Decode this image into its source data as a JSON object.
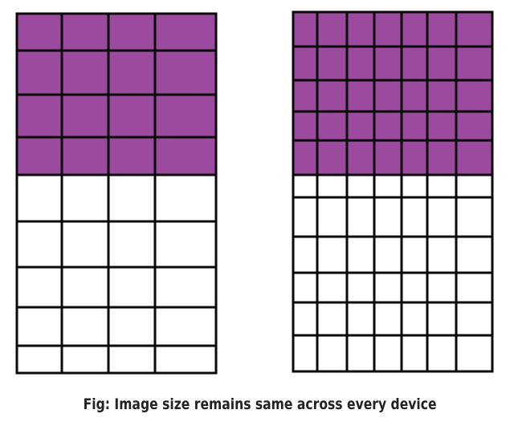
{
  "caption": "Fig: Image size remains same across every device",
  "colors": {
    "filled": "#9b4a9d",
    "empty": "#ffffff",
    "line": "#0a0a0a"
  },
  "grids": [
    {
      "name": "grid-low-density",
      "columns": 4,
      "rows": 9,
      "filled_rows": 4
    },
    {
      "name": "grid-high-density",
      "columns": 7,
      "rows": 11,
      "filled_rows": 5
    }
  ]
}
